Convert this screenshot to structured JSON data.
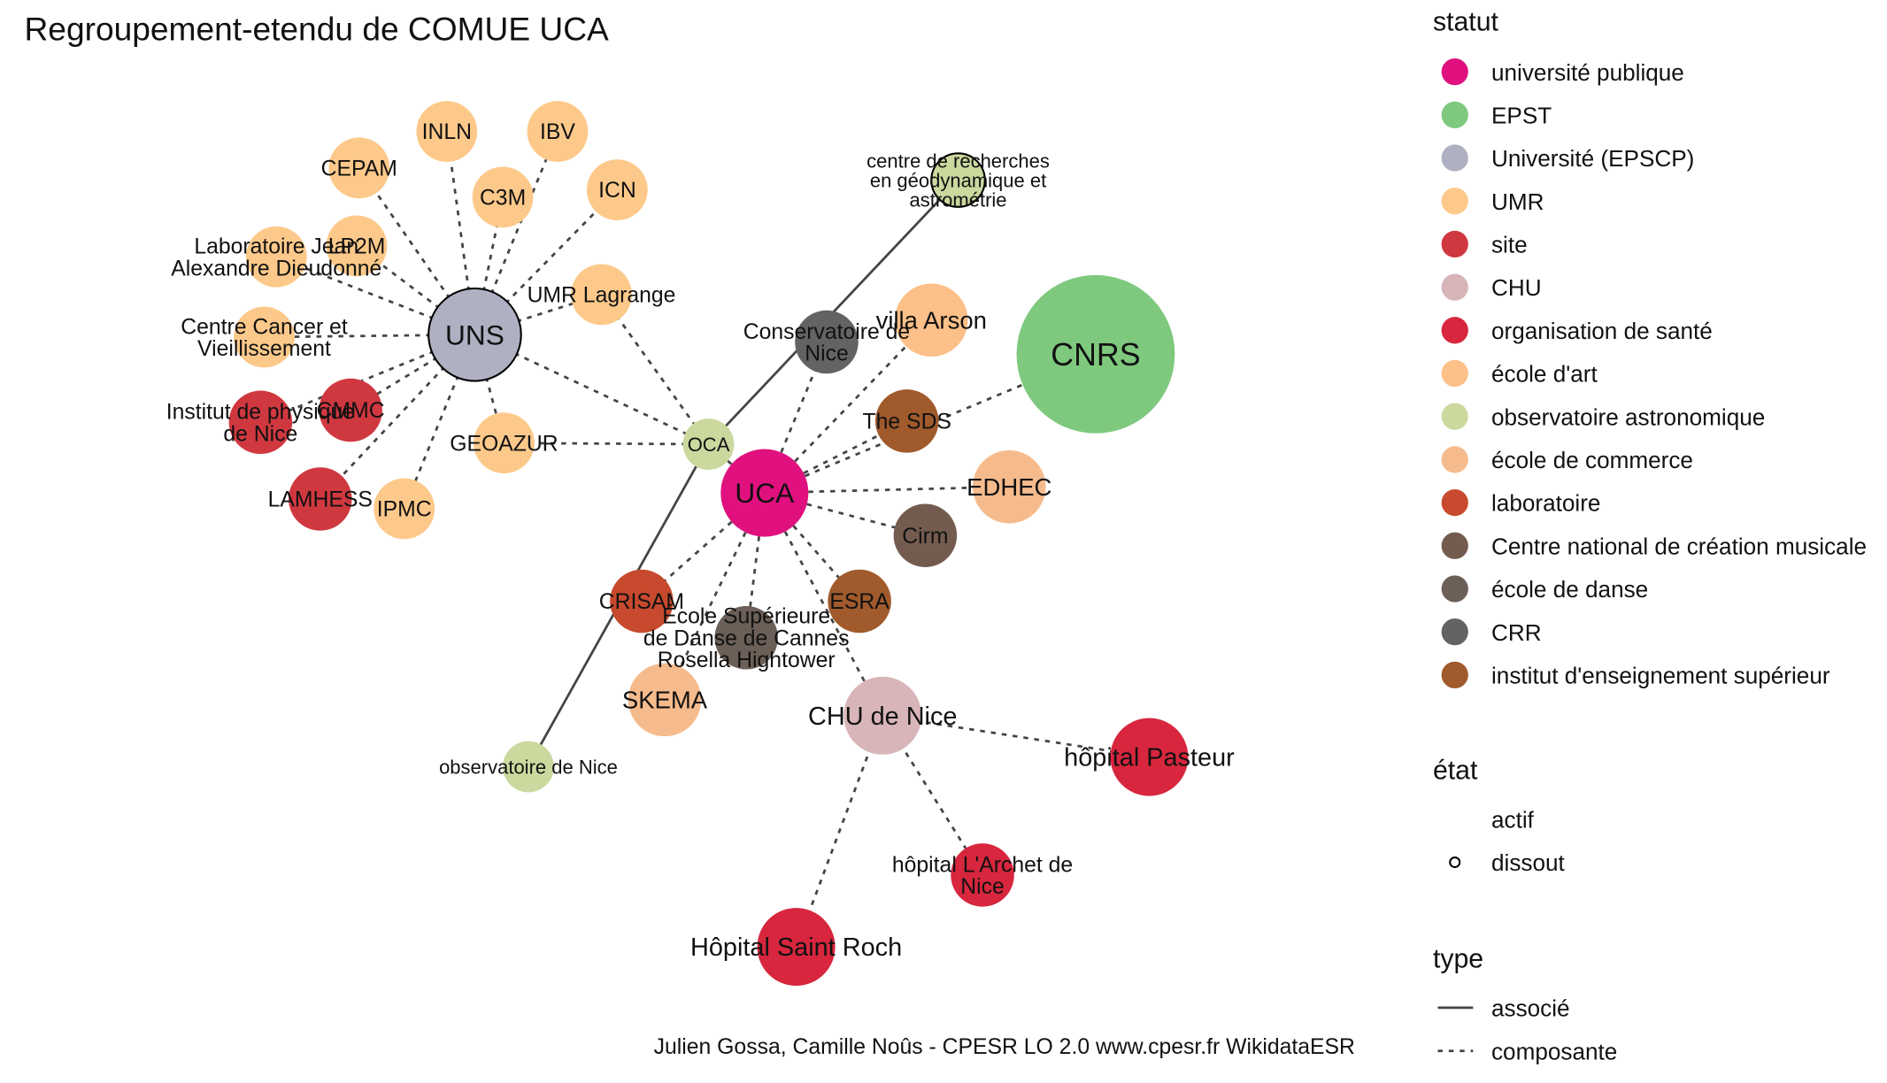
{
  "title": "Regroupement-etendu de COMUE UCA",
  "caption": "Julien Gossa, Camille Noûs - CPESR LO 2.0 www.cpesr.fr WikidataESR",
  "legend": {
    "statut": {
      "title": "statut",
      "items": [
        {
          "label": "université publique",
          "color": "#e0117f"
        },
        {
          "label": "EPST",
          "color": "#7fc97f"
        },
        {
          "label": "Université (EPSCP)",
          "color": "#afb1c2"
        },
        {
          "label": "UMR",
          "color": "#fdc98a"
        },
        {
          "label": "site",
          "color": "#d03840"
        },
        {
          "label": "CHU",
          "color": "#d8b5b8"
        },
        {
          "label": "organisation de santé",
          "color": "#d7263d"
        },
        {
          "label": "école d'art",
          "color": "#fcc088"
        },
        {
          "label": "observatoire astronomique",
          "color": "#cbd89e"
        },
        {
          "label": "école de commerce",
          "color": "#f6bb8c"
        },
        {
          "label": "laboratoire",
          "color": "#c74a2e"
        },
        {
          "label": "Centre national de création musicale",
          "color": "#735c4f"
        },
        {
          "label": "école de danse",
          "color": "#6b5f58"
        },
        {
          "label": "CRR",
          "color": "#636363"
        },
        {
          "label": "institut d'enseignement supérieur",
          "color": "#a05a2c"
        }
      ]
    },
    "etat": {
      "title": "état",
      "items": [
        {
          "label": "actif",
          "shape": "none"
        },
        {
          "label": "dissout",
          "shape": "circle-outline"
        }
      ]
    },
    "type": {
      "title": "type",
      "items": [
        {
          "label": "associé",
          "line": "solid"
        },
        {
          "label": "composante",
          "line": "dashed"
        }
      ]
    }
  },
  "nodes": [
    {
      "id": "uns",
      "label": [
        "UNS"
      ],
      "statut": "Université (EPSCP)",
      "etat": "dissout",
      "size": 38,
      "font": 23
    },
    {
      "id": "uca",
      "label": [
        "UCA"
      ],
      "statut": "université publique",
      "etat": "actif",
      "size": 36,
      "font": 23
    },
    {
      "id": "cnrs",
      "label": [
        "CNRS"
      ],
      "statut": "EPST",
      "etat": "actif",
      "size": 65,
      "font": 26
    },
    {
      "id": "oca",
      "label": [
        "OCA"
      ],
      "statut": "observatoire astronomique",
      "etat": "actif",
      "size": 21,
      "font": 16
    },
    {
      "id": "inln",
      "label": [
        "INLN"
      ],
      "statut": "UMR",
      "etat": "actif",
      "size": 25,
      "font": 18
    },
    {
      "id": "ibv",
      "label": [
        "IBV"
      ],
      "statut": "UMR",
      "etat": "actif",
      "size": 25,
      "font": 18
    },
    {
      "id": "cepam",
      "label": [
        "CEPAM"
      ],
      "statut": "UMR",
      "etat": "actif",
      "size": 25,
      "font": 18
    },
    {
      "id": "c3m",
      "label": [
        "C3M"
      ],
      "statut": "UMR",
      "etat": "actif",
      "size": 25,
      "font": 18
    },
    {
      "id": "icn",
      "label": [
        "ICN"
      ],
      "statut": "UMR",
      "etat": "actif",
      "size": 25,
      "font": 18
    },
    {
      "id": "lp2m",
      "label": [
        "LP2M"
      ],
      "statut": "UMR",
      "etat": "actif",
      "size": 25,
      "font": 18
    },
    {
      "id": "ljad",
      "label": [
        "Laboratoire Jean",
        "Alexandre Dieudonné"
      ],
      "statut": "UMR",
      "etat": "actif",
      "size": 25,
      "font": 18
    },
    {
      "id": "umrlag",
      "label": [
        "UMR Lagrange"
      ],
      "statut": "UMR",
      "etat": "actif",
      "size": 25,
      "font": 18
    },
    {
      "id": "ccv",
      "label": [
        "Centre Cancer et",
        "Vieillissement"
      ],
      "statut": "UMR",
      "etat": "actif",
      "size": 25,
      "font": 18
    },
    {
      "id": "ipn",
      "label": [
        "Institut de physique",
        "de Nice"
      ],
      "statut": "site",
      "etat": "actif",
      "size": 26,
      "font": 18
    },
    {
      "id": "cmmc",
      "label": [
        "CMMC"
      ],
      "statut": "site",
      "etat": "actif",
      "size": 26,
      "font": 18
    },
    {
      "id": "geoazur",
      "label": [
        "GEOAZUR"
      ],
      "statut": "UMR",
      "etat": "actif",
      "size": 25,
      "font": 18
    },
    {
      "id": "lamhess",
      "label": [
        "LAMHESS"
      ],
      "statut": "site",
      "etat": "actif",
      "size": 26,
      "font": 18
    },
    {
      "id": "ipmc",
      "label": [
        "IPMC"
      ],
      "statut": "UMR",
      "etat": "actif",
      "size": 25,
      "font": 18
    },
    {
      "id": "crgeo",
      "label": [
        "centre de recherches",
        "en géodynamique et",
        "astrométrie"
      ],
      "statut": "observatoire astronomique",
      "etat": "dissout",
      "size": 22,
      "font": 16
    },
    {
      "id": "crr",
      "label": [
        "Conservatoire de",
        "Nice"
      ],
      "statut": "CRR",
      "etat": "actif",
      "size": 26,
      "font": 18
    },
    {
      "id": "arson",
      "label": [
        "villa Arson"
      ],
      "statut": "école d'art",
      "etat": "actif",
      "size": 30,
      "font": 20
    },
    {
      "id": "sds",
      "label": [
        "The SDS"
      ],
      "statut": "institut d'enseignement supérieur",
      "etat": "actif",
      "size": 26,
      "font": 18
    },
    {
      "id": "edhec",
      "label": [
        "EDHEC"
      ],
      "statut": "école de commerce",
      "etat": "actif",
      "size": 30,
      "font": 20
    },
    {
      "id": "cirm",
      "label": [
        "Cirm"
      ],
      "statut": "Centre national de création musicale",
      "etat": "actif",
      "size": 26,
      "font": 18
    },
    {
      "id": "esra",
      "label": [
        "ESRA"
      ],
      "statut": "institut d'enseignement supérieur",
      "etat": "actif",
      "size": 26,
      "font": 18
    },
    {
      "id": "crisam",
      "label": [
        "CRISAM"
      ],
      "statut": "laboratoire",
      "etat": "actif",
      "size": 26,
      "font": 18
    },
    {
      "id": "esdc",
      "label": [
        "École Supérieure",
        "de Danse de Cannes",
        "Rosella Hightower"
      ],
      "statut": "école de danse",
      "etat": "actif",
      "size": 26,
      "font": 18
    },
    {
      "id": "skema",
      "label": [
        "SKEMA"
      ],
      "statut": "école de commerce",
      "etat": "actif",
      "size": 30,
      "font": 20
    },
    {
      "id": "chu",
      "label": [
        "CHU de Nice"
      ],
      "statut": "CHU",
      "etat": "actif",
      "size": 32,
      "font": 21
    },
    {
      "id": "pasteur",
      "label": [
        "hôpital Pasteur"
      ],
      "statut": "organisation de santé",
      "etat": "actif",
      "size": 32,
      "font": 21
    },
    {
      "id": "archet",
      "label": [
        "hôpital L'Archet de",
        "Nice"
      ],
      "statut": "organisation de santé",
      "etat": "actif",
      "size": 26,
      "font": 18
    },
    {
      "id": "roch",
      "label": [
        "Hôpital Saint Roch"
      ],
      "statut": "organisation de santé",
      "etat": "actif",
      "size": 32,
      "font": 21
    },
    {
      "id": "obsnice",
      "label": [
        "observatoire de Nice"
      ],
      "statut": "observatoire astronomique",
      "etat": "actif",
      "size": 21,
      "font": 16
    }
  ],
  "edges": [
    {
      "from": "uns",
      "to": "inln",
      "type": "composante"
    },
    {
      "from": "uns",
      "to": "ibv",
      "type": "composante"
    },
    {
      "from": "uns",
      "to": "cepam",
      "type": "composante"
    },
    {
      "from": "uns",
      "to": "c3m",
      "type": "composante"
    },
    {
      "from": "uns",
      "to": "icn",
      "type": "composante"
    },
    {
      "from": "uns",
      "to": "lp2m",
      "type": "composante"
    },
    {
      "from": "uns",
      "to": "ljad",
      "type": "composante"
    },
    {
      "from": "uns",
      "to": "umrlag",
      "type": "composante"
    },
    {
      "from": "uns",
      "to": "ccv",
      "type": "composante"
    },
    {
      "from": "uns",
      "to": "ipn",
      "type": "composante"
    },
    {
      "from": "uns",
      "to": "cmmc",
      "type": "composante"
    },
    {
      "from": "uns",
      "to": "geoazur",
      "type": "composante"
    },
    {
      "from": "uns",
      "to": "lamhess",
      "type": "composante"
    },
    {
      "from": "uns",
      "to": "ipmc",
      "type": "composante"
    },
    {
      "from": "uns",
      "to": "oca",
      "type": "composante"
    },
    {
      "from": "oca",
      "to": "geoazur",
      "type": "composante"
    },
    {
      "from": "oca",
      "to": "umrlag",
      "type": "composante"
    },
    {
      "from": "uca",
      "to": "oca",
      "type": "composante"
    },
    {
      "from": "uca",
      "to": "crr",
      "type": "composante"
    },
    {
      "from": "uca",
      "to": "arson",
      "type": "composante"
    },
    {
      "from": "uca",
      "to": "sds",
      "type": "composante"
    },
    {
      "from": "uca",
      "to": "cnrs",
      "type": "composante"
    },
    {
      "from": "uca",
      "to": "edhec",
      "type": "composante"
    },
    {
      "from": "uca",
      "to": "cirm",
      "type": "composante"
    },
    {
      "from": "uca",
      "to": "esra",
      "type": "composante"
    },
    {
      "from": "uca",
      "to": "crisam",
      "type": "composante"
    },
    {
      "from": "uca",
      "to": "esdc",
      "type": "composante"
    },
    {
      "from": "uca",
      "to": "skema",
      "type": "composante"
    },
    {
      "from": "uca",
      "to": "chu",
      "type": "composante"
    },
    {
      "from": "chu",
      "to": "pasteur",
      "type": "composante"
    },
    {
      "from": "chu",
      "to": "archet",
      "type": "composante"
    },
    {
      "from": "chu",
      "to": "roch",
      "type": "composante"
    },
    {
      "from": "oca",
      "to": "crgeo",
      "type": "associé"
    },
    {
      "from": "oca",
      "to": "obsnice",
      "type": "associé"
    }
  ]
}
